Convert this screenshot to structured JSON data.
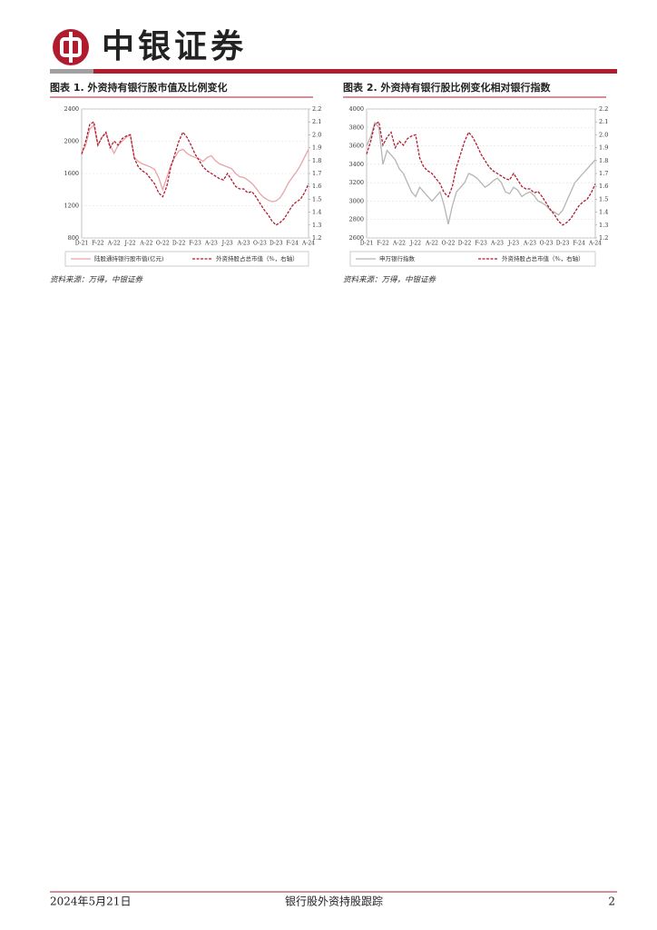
{
  "header": {
    "brand": "中银证券"
  },
  "chart_data": [
    {
      "type": "line",
      "title": "图表 1. 外资持有银行股市值及比例变化",
      "source": "资料来源：万得，中银证券",
      "x": [
        "D-21",
        null,
        null,
        null,
        "F-22",
        null,
        null,
        null,
        "A-22",
        null,
        null,
        null,
        "J-22",
        null,
        null,
        null,
        "A-22",
        null,
        null,
        null,
        "O-22",
        null,
        null,
        null,
        "D-22",
        null,
        null,
        null,
        "F-23",
        null,
        null,
        null,
        "A-23",
        null,
        null,
        null,
        "J-23",
        null,
        null,
        null,
        "A-23",
        null,
        null,
        null,
        "O-23",
        null,
        null,
        null,
        "D-23",
        null,
        null,
        null,
        "F-24",
        null,
        null,
        null,
        "A-24"
      ],
      "ylim": [
        800,
        2400
      ],
      "yticks": [
        800,
        1200,
        1600,
        2000,
        2400
      ],
      "y2lim": [
        1.2,
        2.2
      ],
      "y2ticks": [
        1.2,
        1.3,
        1.4,
        1.5,
        1.6,
        1.7,
        1.8,
        1.9,
        {
          "value": 2,
          "label": "2.0"
        },
        2.1,
        2.2
      ],
      "grid": true,
      "legend": "bottom",
      "series": [
        {
          "name": "陆股通持银行股市值(亿元)",
          "color": "#e8a3a8",
          "dashed": false,
          "values": [
            1850,
            1950,
            2150,
            2200,
            1950,
            2050,
            2100,
            1950,
            1850,
            1950,
            2000,
            2050,
            2080,
            1800,
            1750,
            1720,
            1700,
            1680,
            1650,
            1550,
            1400,
            1550,
            1700,
            1800,
            1880,
            1900,
            1850,
            1820,
            1800,
            1780,
            1750,
            1800,
            1820,
            1760,
            1720,
            1700,
            1680,
            1660,
            1600,
            1560,
            1550,
            1520,
            1480,
            1420,
            1350,
            1300,
            1270,
            1250,
            1260,
            1300,
            1380,
            1480,
            1550,
            1620,
            1700,
            1800,
            1900
          ]
        },
        {
          "name": "外资持股占总市值（%，右轴）",
          "color": "#b01c2e",
          "dashed": true,
          "axis": "y2",
          "values": [
            1.85,
            1.95,
            2.08,
            2.1,
            1.92,
            1.98,
            2.02,
            1.9,
            1.95,
            1.92,
            1.97,
            1.99,
            2.0,
            1.82,
            1.75,
            1.72,
            1.7,
            1.66,
            1.62,
            1.55,
            1.52,
            1.6,
            1.75,
            1.85,
            1.95,
            2.02,
            1.98,
            1.92,
            1.85,
            1.8,
            1.75,
            1.72,
            1.7,
            1.68,
            1.66,
            1.65,
            1.7,
            1.65,
            1.6,
            1.58,
            1.58,
            1.55,
            1.56,
            1.52,
            1.47,
            1.42,
            1.38,
            1.33,
            1.3,
            1.32,
            1.35,
            1.4,
            1.45,
            1.48,
            1.5,
            1.55,
            1.62
          ]
        }
      ]
    },
    {
      "type": "line",
      "title": "图表 2. 外资持有银行股比例变化相对银行指数",
      "source": "资料来源：万得，中银证券",
      "x": [
        "D-21",
        null,
        null,
        null,
        "F-22",
        null,
        null,
        null,
        "A-22",
        null,
        null,
        null,
        "J-22",
        null,
        null,
        null,
        "A-22",
        null,
        null,
        null,
        "O-22",
        null,
        null,
        null,
        "D-22",
        null,
        null,
        null,
        "F-23",
        null,
        null,
        null,
        "A-23",
        null,
        null,
        null,
        "J-23",
        null,
        null,
        null,
        "A-23",
        null,
        null,
        null,
        "O-23",
        null,
        null,
        null,
        "D-23",
        null,
        null,
        null,
        "F-24",
        null,
        null,
        null,
        "A-24"
      ],
      "ylim": [
        2600,
        4000
      ],
      "yticks": [
        2600,
        2800,
        3000,
        3200,
        3400,
        3600,
        3800,
        4000
      ],
      "y2lim": [
        1.2,
        2.2
      ],
      "y2ticks": [
        1.2,
        1.3,
        1.4,
        1.5,
        1.6,
        1.7,
        1.8,
        1.9,
        {
          "value": 2,
          "label": "2.0"
        },
        2.1,
        2.2
      ],
      "grid": true,
      "legend": "bottom",
      "series": [
        {
          "name": "申万银行指数",
          "color": "#b5b5b5",
          "dashed": false,
          "values": [
            3600,
            3700,
            3850,
            3800,
            3400,
            3550,
            3500,
            3450,
            3350,
            3300,
            3200,
            3100,
            3050,
            3150,
            3100,
            3050,
            3000,
            3050,
            3100,
            2950,
            2750,
            2950,
            3100,
            3150,
            3200,
            3300,
            3280,
            3250,
            3200,
            3150,
            3180,
            3220,
            3250,
            3200,
            3100,
            3080,
            3150,
            3120,
            3050,
            3080,
            3100,
            3060,
            3000,
            2980,
            2950,
            2900,
            2880,
            2850,
            2900,
            3000,
            3100,
            3200,
            3250,
            3300,
            3350,
            3400,
            3450
          ]
        },
        {
          "name": "外资持股占总市值（%，右轴）",
          "color": "#b01c2e",
          "dashed": true,
          "axis": "y2",
          "values": [
            1.85,
            1.95,
            2.08,
            2.1,
            1.92,
            1.98,
            2.02,
            1.9,
            1.95,
            1.92,
            1.97,
            1.99,
            2.0,
            1.82,
            1.75,
            1.72,
            1.7,
            1.66,
            1.62,
            1.55,
            1.52,
            1.6,
            1.75,
            1.85,
            1.95,
            2.02,
            1.98,
            1.92,
            1.85,
            1.8,
            1.75,
            1.72,
            1.7,
            1.68,
            1.66,
            1.65,
            1.7,
            1.65,
            1.6,
            1.58,
            1.58,
            1.55,
            1.56,
            1.52,
            1.47,
            1.42,
            1.38,
            1.33,
            1.3,
            1.32,
            1.35,
            1.4,
            1.45,
            1.48,
            1.5,
            1.55,
            1.62
          ]
        }
      ]
    }
  ],
  "footer": {
    "date": "2024年5月21日",
    "report": "银行股外资持股跟踪",
    "page": "2"
  }
}
